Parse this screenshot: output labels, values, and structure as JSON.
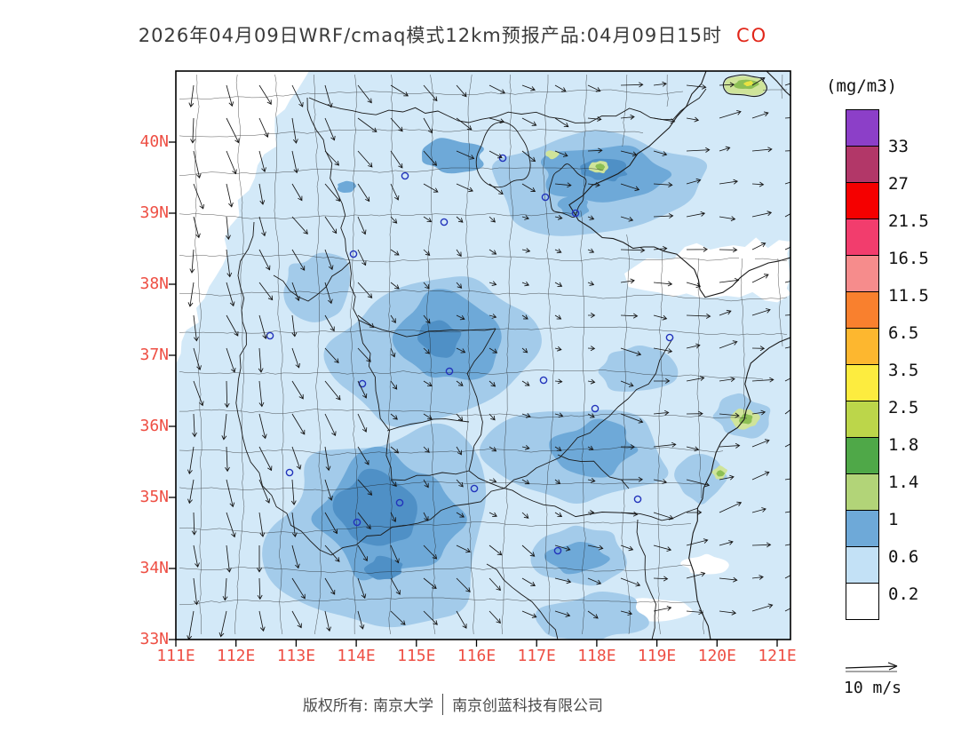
{
  "title": {
    "prefix": "2026年04月09日WRF/cmaq模式12km预报产品:04月09日15时",
    "species": "CO"
  },
  "colorbar": {
    "unit": "(mg/m3)",
    "labels": [
      "33",
      "27",
      "21.5",
      "16.5",
      "11.5",
      "6.5",
      "3.5",
      "2.5",
      "1.8",
      "1.4",
      "1",
      "0.6",
      "0.2"
    ],
    "colors": [
      "#8c3fc8",
      "#b23768",
      "#f50000",
      "#f23d6d",
      "#f68c8c",
      "#f9802e",
      "#fdb72f",
      "#fdec3f",
      "#bcd64a",
      "#4fa848",
      "#b2d478",
      "#6ea9d8",
      "#c3e1f6",
      "#ffffff"
    ]
  },
  "axes": {
    "x_ticks": [
      "111E",
      "112E",
      "113E",
      "114E",
      "115E",
      "116E",
      "117E",
      "118E",
      "119E",
      "120E",
      "121E"
    ],
    "y_ticks": [
      "40N",
      "39N",
      "38N",
      "37N",
      "36N",
      "35N",
      "34N",
      "33N"
    ],
    "tick_color": "#ee4f44"
  },
  "wind_legend": {
    "label": "10 m/s"
  },
  "footer": {
    "owner": "版权所有: 南京大学",
    "company": "南京创蓝科技有限公司"
  },
  "map_palette": {
    "base": "#d3e9f8",
    "mid": "#a3cbea",
    "dark": "#6ea9d8",
    "darkest": "#4f90c6",
    "white": "#ffffff",
    "spot_pale": "#cfe49a",
    "spot_mid": "#8cbf55",
    "spot_yellow": "#e8e242",
    "boundary": "#1a1a1a",
    "city_marker": "#2233bb"
  },
  "chart_data": {
    "type": "heatmap",
    "title": "2026年04月09日WRF/cmaq模式12km预报产品:04月09日15时 CO",
    "variable": "CO",
    "unit": "mg/m3",
    "x_axis_label_ticks": [
      "111E",
      "112E",
      "113E",
      "114E",
      "115E",
      "116E",
      "117E",
      "118E",
      "119E",
      "120E",
      "121E"
    ],
    "y_axis_label_ticks": [
      "40N",
      "39N",
      "38N",
      "37N",
      "36N",
      "35N",
      "34N",
      "33N"
    ],
    "xlim": [
      "111E",
      "121E"
    ],
    "ylim": [
      "33N",
      "41N"
    ],
    "levels": [
      0.2,
      0.6,
      1,
      1.4,
      1.8,
      2.5,
      3.5,
      6.5,
      11.5,
      16.5,
      21.5,
      27,
      33
    ],
    "level_colors": [
      "#ffffff",
      "#c3e1f6",
      "#6ea9d8",
      "#b2d478",
      "#4fa848",
      "#bcd64a",
      "#fdec3f",
      "#fdb72f",
      "#f9802e",
      "#f68c8c",
      "#f23d6d",
      "#f50000",
      "#b23768",
      "#8c3fc8"
    ],
    "legend_position": "right",
    "wind_vector_reference": "10 m/s",
    "field_summary": "CO filled contours mostly 0.2-1.4 mg/m3 over eastern China; higher cells 1.4-3.5 mg/m3 at isolated coastal spots near 120.6E/40.7N, 120.3E/36.1N, 119.9E/35.4N and 117.4E/39.6N; clear (<0.2) zone in the northwest corner and over the Bohai sea band near 38-39N"
  }
}
